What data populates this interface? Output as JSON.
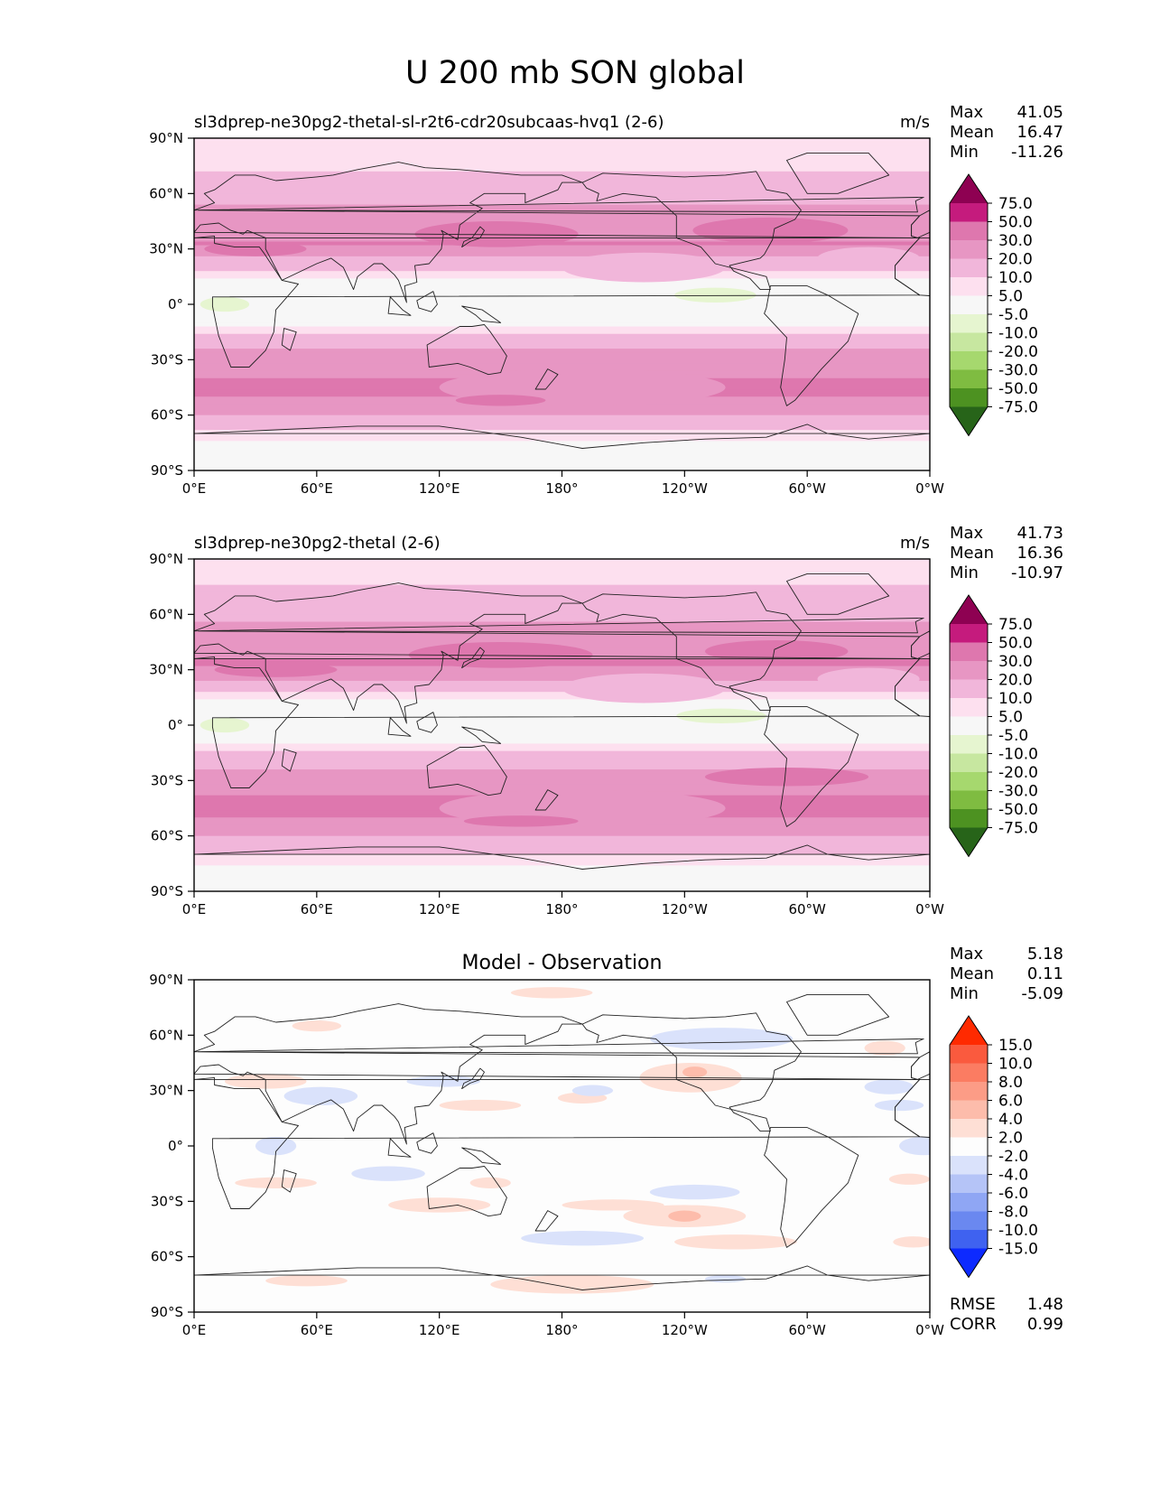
{
  "figure": {
    "title": "U 200 mb SON global"
  },
  "axes": {
    "yticks": [
      "90°N",
      "60°N",
      "30°N",
      "0°",
      "30°S",
      "60°S",
      "90°S"
    ],
    "xticks": [
      "0°E",
      "60°E",
      "120°E",
      "180°",
      "120°W",
      "60°W",
      "0°W"
    ]
  },
  "colors": {
    "panel_background": "#f7f7f7",
    "diff_background": "#fdfdfd",
    "coastline": "#222222"
  },
  "chart_data": [
    {
      "type": "heatmap",
      "title": "sl3dprep-ne30pg2-thetal-sl-r2t6-cdr20subcaas-hvq1 (2-6)",
      "units": "m/s",
      "stats": {
        "max_label": "Max",
        "max": "41.05",
        "mean_label": "Mean",
        "mean": "16.47",
        "min_label": "Min",
        "min": "-11.26"
      },
      "colorbar": {
        "labels": [
          "75.0",
          "50.0",
          "30.0",
          "20.0",
          "10.0",
          "5.0",
          "-5.0",
          "-10.0",
          "-20.0",
          "-30.0",
          "-50.0",
          "-75.0"
        ],
        "colors": [
          "#8e0152",
          "#c51b7d",
          "#de77ae",
          "#e796c3",
          "#f1b6da",
          "#fde0ef",
          "#f7f7f7",
          "#e6f5d0",
          "#c7e7a0",
          "#a6d86e",
          "#7fbc41",
          "#4d9221",
          "#276419"
        ]
      },
      "bands": [
        {
          "lat": 84,
          "val": 6
        },
        {
          "lat": 72,
          "val": 10
        },
        {
          "lat": 58,
          "val": 18
        },
        {
          "lat": 45,
          "val": 24
        },
        {
          "lat": 33,
          "val": 30
        },
        {
          "lat": 22,
          "val": 15
        },
        {
          "lat": 12,
          "val": 2
        },
        {
          "lat": 0,
          "val": -3
        },
        {
          "lat": -10,
          "val": 3
        },
        {
          "lat": -22,
          "val": 18
        },
        {
          "lat": -35,
          "val": 28
        },
        {
          "lat": -47,
          "val": 32
        },
        {
          "lat": -57,
          "val": 25
        },
        {
          "lat": -66,
          "val": 12
        },
        {
          "lat": -76,
          "val": 4
        },
        {
          "lat": -88,
          "val": 1
        }
      ],
      "features": [
        {
          "lon": 148,
          "lat": 38,
          "rlon": 40,
          "rlat": 7,
          "val": 40
        },
        {
          "lon": 282,
          "lat": 40,
          "rlon": 38,
          "rlat": 7,
          "val": 40
        },
        {
          "lon": 30,
          "lat": 30,
          "rlon": 25,
          "rlat": 4,
          "val": 35
        },
        {
          "lon": 90,
          "lat": 2,
          "rlon": 30,
          "rlat": 5,
          "val": -7
        },
        {
          "lon": 90,
          "lat": 2,
          "rlon": 12,
          "rlat": 2,
          "val": -12
        },
        {
          "lon": 15,
          "lat": 0,
          "rlon": 12,
          "rlat": 4,
          "val": -7
        },
        {
          "lon": 255,
          "lat": 5,
          "rlon": 20,
          "rlat": 4,
          "val": -7
        },
        {
          "lon": 100,
          "lat": 5,
          "rlon": 50,
          "rlat": 9,
          "val": -3
        },
        {
          "lon": 190,
          "lat": -45,
          "rlon": 70,
          "rlat": 10,
          "val": 22
        },
        {
          "lon": 150,
          "lat": -52,
          "rlon": 22,
          "rlat": 3,
          "val": 40
        },
        {
          "lon": 220,
          "lat": 20,
          "rlon": 40,
          "rlat": 8,
          "val": 14
        },
        {
          "lon": 330,
          "lat": 25,
          "rlon": 25,
          "rlat": 6,
          "val": 14
        }
      ]
    },
    {
      "type": "heatmap",
      "title": "sl3dprep-ne30pg2-thetal (2-6)",
      "units": "m/s",
      "stats": {
        "max_label": "Max",
        "max": "41.73",
        "mean_label": "Mean",
        "mean": "16.36",
        "min_label": "Min",
        "min": "-10.97"
      },
      "colorbar": {
        "labels": [
          "75.0",
          "50.0",
          "30.0",
          "20.0",
          "10.0",
          "5.0",
          "-5.0",
          "-10.0",
          "-20.0",
          "-30.0",
          "-50.0",
          "-75.0"
        ],
        "colors": [
          "#8e0152",
          "#c51b7d",
          "#de77ae",
          "#e796c3",
          "#f1b6da",
          "#fde0ef",
          "#f7f7f7",
          "#e6f5d0",
          "#c7e7a0",
          "#a6d86e",
          "#7fbc41",
          "#4d9221",
          "#276419"
        ]
      },
      "bands": [
        {
          "lat": 84,
          "val": 7
        },
        {
          "lat": 72,
          "val": 12
        },
        {
          "lat": 58,
          "val": 19
        },
        {
          "lat": 45,
          "val": 25
        },
        {
          "lat": 33,
          "val": 31
        },
        {
          "lat": 22,
          "val": 16
        },
        {
          "lat": 12,
          "val": 3
        },
        {
          "lat": 0,
          "val": -3
        },
        {
          "lat": -10,
          "val": 4
        },
        {
          "lat": -22,
          "val": 19
        },
        {
          "lat": -35,
          "val": 29
        },
        {
          "lat": -47,
          "val": 33
        },
        {
          "lat": -57,
          "val": 24
        },
        {
          "lat": -66,
          "val": 13
        },
        {
          "lat": -76,
          "val": 5
        },
        {
          "lat": -88,
          "val": 1
        }
      ],
      "features": [
        {
          "lon": 150,
          "lat": 38,
          "rlon": 45,
          "rlat": 7,
          "val": 40
        },
        {
          "lon": 285,
          "lat": 40,
          "rlon": 35,
          "rlat": 6,
          "val": 40
        },
        {
          "lon": 40,
          "lat": 30,
          "rlon": 30,
          "rlat": 4,
          "val": 35
        },
        {
          "lon": 95,
          "lat": 2,
          "rlon": 35,
          "rlat": 5,
          "val": -7
        },
        {
          "lon": 15,
          "lat": 0,
          "rlon": 12,
          "rlat": 4,
          "val": -7
        },
        {
          "lon": 258,
          "lat": 5,
          "rlon": 22,
          "rlat": 4,
          "val": -7
        },
        {
          "lon": 100,
          "lat": 5,
          "rlon": 55,
          "rlat": 9,
          "val": -3
        },
        {
          "lon": 190,
          "lat": -45,
          "rlon": 70,
          "rlat": 10,
          "val": 22
        },
        {
          "lon": 160,
          "lat": -52,
          "rlon": 28,
          "rlat": 3,
          "val": 40
        },
        {
          "lon": 290,
          "lat": -28,
          "rlon": 40,
          "rlat": 5,
          "val": 35
        },
        {
          "lon": 220,
          "lat": 20,
          "rlon": 40,
          "rlat": 8,
          "val": 14
        },
        {
          "lon": 330,
          "lat": 25,
          "rlon": 25,
          "rlat": 6,
          "val": 14
        }
      ]
    },
    {
      "type": "heatmap",
      "title": "Model - Observation",
      "units": "",
      "stats": {
        "max_label": "Max",
        "max": "5.18",
        "mean_label": "Mean",
        "mean": "0.11",
        "min_label": "Min",
        "min": "-5.09"
      },
      "extra_stats": {
        "rmse_label": "RMSE",
        "rmse": "1.48",
        "corr_label": "CORR",
        "corr": "0.99"
      },
      "colorbar": {
        "labels": [
          "15.0",
          "10.0",
          "8.0",
          "6.0",
          "4.0",
          "2.0",
          "-2.0",
          "-4.0",
          "-6.0",
          "-8.0",
          "-10.0",
          "-15.0"
        ],
        "colors": [
          "#ff2a00",
          "#fa5a3e",
          "#fb7c62",
          "#fc9c86",
          "#fdbcab",
          "#fedfd5",
          "#fdfdfd",
          "#dae2fb",
          "#b5c4f7",
          "#8fa6f4",
          "#6a88f0",
          "#3f62f0",
          "#0d2aff"
        ]
      },
      "bands": [
        {
          "lat": 90,
          "val": 0
        },
        {
          "lat": -90,
          "val": 0
        }
      ],
      "features": [
        {
          "lon": 175,
          "lat": 83,
          "rlon": 20,
          "rlat": 3,
          "val": 2.5
        },
        {
          "lon": 60,
          "lat": 65,
          "rlon": 12,
          "rlat": 3,
          "val": 2.5
        },
        {
          "lon": 258,
          "lat": 58,
          "rlon": 35,
          "rlat": 6,
          "val": -2.5
        },
        {
          "lon": 338,
          "lat": 53,
          "rlon": 10,
          "rlat": 4,
          "val": 2.5
        },
        {
          "lon": 243,
          "lat": 37,
          "rlon": 25,
          "rlat": 8,
          "val": 2.5
        },
        {
          "lon": 245,
          "lat": 40,
          "rlon": 6,
          "rlat": 3,
          "val": 4.5
        },
        {
          "lon": 62,
          "lat": 27,
          "rlon": 18,
          "rlat": 5,
          "val": -2.5
        },
        {
          "lon": 122,
          "lat": 35,
          "rlon": 18,
          "rlat": 3,
          "val": -2.5
        },
        {
          "lon": 340,
          "lat": 32,
          "rlon": 12,
          "rlat": 4,
          "val": -2.5
        },
        {
          "lon": 345,
          "lat": 22,
          "rlon": 12,
          "rlat": 3,
          "val": -2.5
        },
        {
          "lon": 35,
          "lat": 35,
          "rlon": 20,
          "rlat": 4,
          "val": 2.5
        },
        {
          "lon": 190,
          "lat": 26,
          "rlon": 12,
          "rlat": 3,
          "val": 2.5
        },
        {
          "lon": 140,
          "lat": 22,
          "rlon": 20,
          "rlat": 3,
          "val": 2.5
        },
        {
          "lon": 195,
          "lat": 30,
          "rlon": 10,
          "rlat": 3,
          "val": -2.5
        },
        {
          "lon": 40,
          "lat": 0,
          "rlon": 10,
          "rlat": 5,
          "val": -2.5
        },
        {
          "lon": 357,
          "lat": 0,
          "rlon": 12,
          "rlat": 5,
          "val": -2.5
        },
        {
          "lon": 95,
          "lat": -15,
          "rlon": 18,
          "rlat": 4,
          "val": -2.5
        },
        {
          "lon": 40,
          "lat": -20,
          "rlon": 20,
          "rlat": 3,
          "val": 2.5
        },
        {
          "lon": 145,
          "lat": -20,
          "rlon": 10,
          "rlat": 3,
          "val": 2.5
        },
        {
          "lon": 120,
          "lat": -32,
          "rlon": 25,
          "rlat": 4,
          "val": 2.5
        },
        {
          "lon": 205,
          "lat": -32,
          "rlon": 25,
          "rlat": 3,
          "val": 2.5
        },
        {
          "lon": 240,
          "lat": -38,
          "rlon": 30,
          "rlat": 6,
          "val": 2.5
        },
        {
          "lon": 240,
          "lat": -38,
          "rlon": 8,
          "rlat": 3,
          "val": 4.5
        },
        {
          "lon": 245,
          "lat": -25,
          "rlon": 22,
          "rlat": 4,
          "val": -2.5
        },
        {
          "lon": 265,
          "lat": -52,
          "rlon": 30,
          "rlat": 4,
          "val": 2.5
        },
        {
          "lon": 190,
          "lat": -50,
          "rlon": 30,
          "rlat": 4,
          "val": -2.5
        },
        {
          "lon": 185,
          "lat": -75,
          "rlon": 40,
          "rlat": 5,
          "val": 2.5
        },
        {
          "lon": 55,
          "lat": -73,
          "rlon": 20,
          "rlat": 3,
          "val": 2.5
        },
        {
          "lon": 260,
          "lat": -72,
          "rlon": 10,
          "rlat": 2,
          "val": -2.5
        },
        {
          "lon": 350,
          "lat": -18,
          "rlon": 10,
          "rlat": 3,
          "val": 2.5
        },
        {
          "lon": 352,
          "lat": -52,
          "rlon": 10,
          "rlat": 3,
          "val": 2.5
        }
      ]
    }
  ]
}
